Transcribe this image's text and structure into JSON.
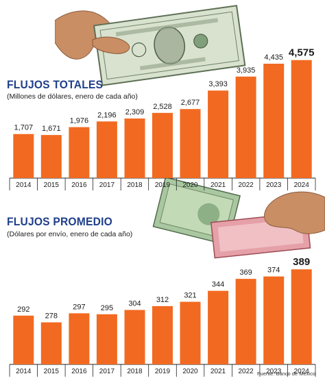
{
  "charts_meta": {
    "bar_color": "#f26a21",
    "label_color": "#1a1a1a",
    "axis_color": "#222222",
    "title_color": "#1f3f8a"
  },
  "chart_data": [
    {
      "type": "bar",
      "title": "FLUJOS TOTALES",
      "subtitle": "(Millones de dólares, enero de cada año)",
      "categories": [
        "2014",
        "2015",
        "2016",
        "2017",
        "2018",
        "2019",
        "2020",
        "2021",
        "2022",
        "2023",
        "2024"
      ],
      "values": [
        1707,
        1671,
        1976,
        2196,
        2309,
        2528,
        2677,
        3393,
        3935,
        4435,
        4575
      ],
      "value_labels": [
        "1,707",
        "1,671",
        "1,976",
        "2,196",
        "2,309",
        "2,528",
        "2,677",
        "3,393",
        "3,935",
        "4,435",
        "4,575"
      ],
      "ylim": [
        0,
        4700
      ],
      "grid": false,
      "highlight_last": true
    },
    {
      "type": "bar",
      "title": "FLUJOS PROMEDIO",
      "subtitle": "(Dólares por envío, enero de cada año)",
      "categories": [
        "2014",
        "2015",
        "2016",
        "2017",
        "2018",
        "2019",
        "2020",
        "2021",
        "2022",
        "2023",
        "2024"
      ],
      "values": [
        292,
        278,
        297,
        295,
        304,
        312,
        321,
        344,
        369,
        374,
        389
      ],
      "value_labels": [
        "292",
        "278",
        "297",
        "295",
        "304",
        "312",
        "321",
        "344",
        "369",
        "374",
        "389"
      ],
      "ylim": [
        190,
        395
      ],
      "grid": false,
      "highlight_last": true
    }
  ],
  "source": "Fuente: Banco de México",
  "illustrations": {
    "top": "hand-holding-one-dollar-bill",
    "middle": "hand-holding-mexican-peso-bills"
  }
}
